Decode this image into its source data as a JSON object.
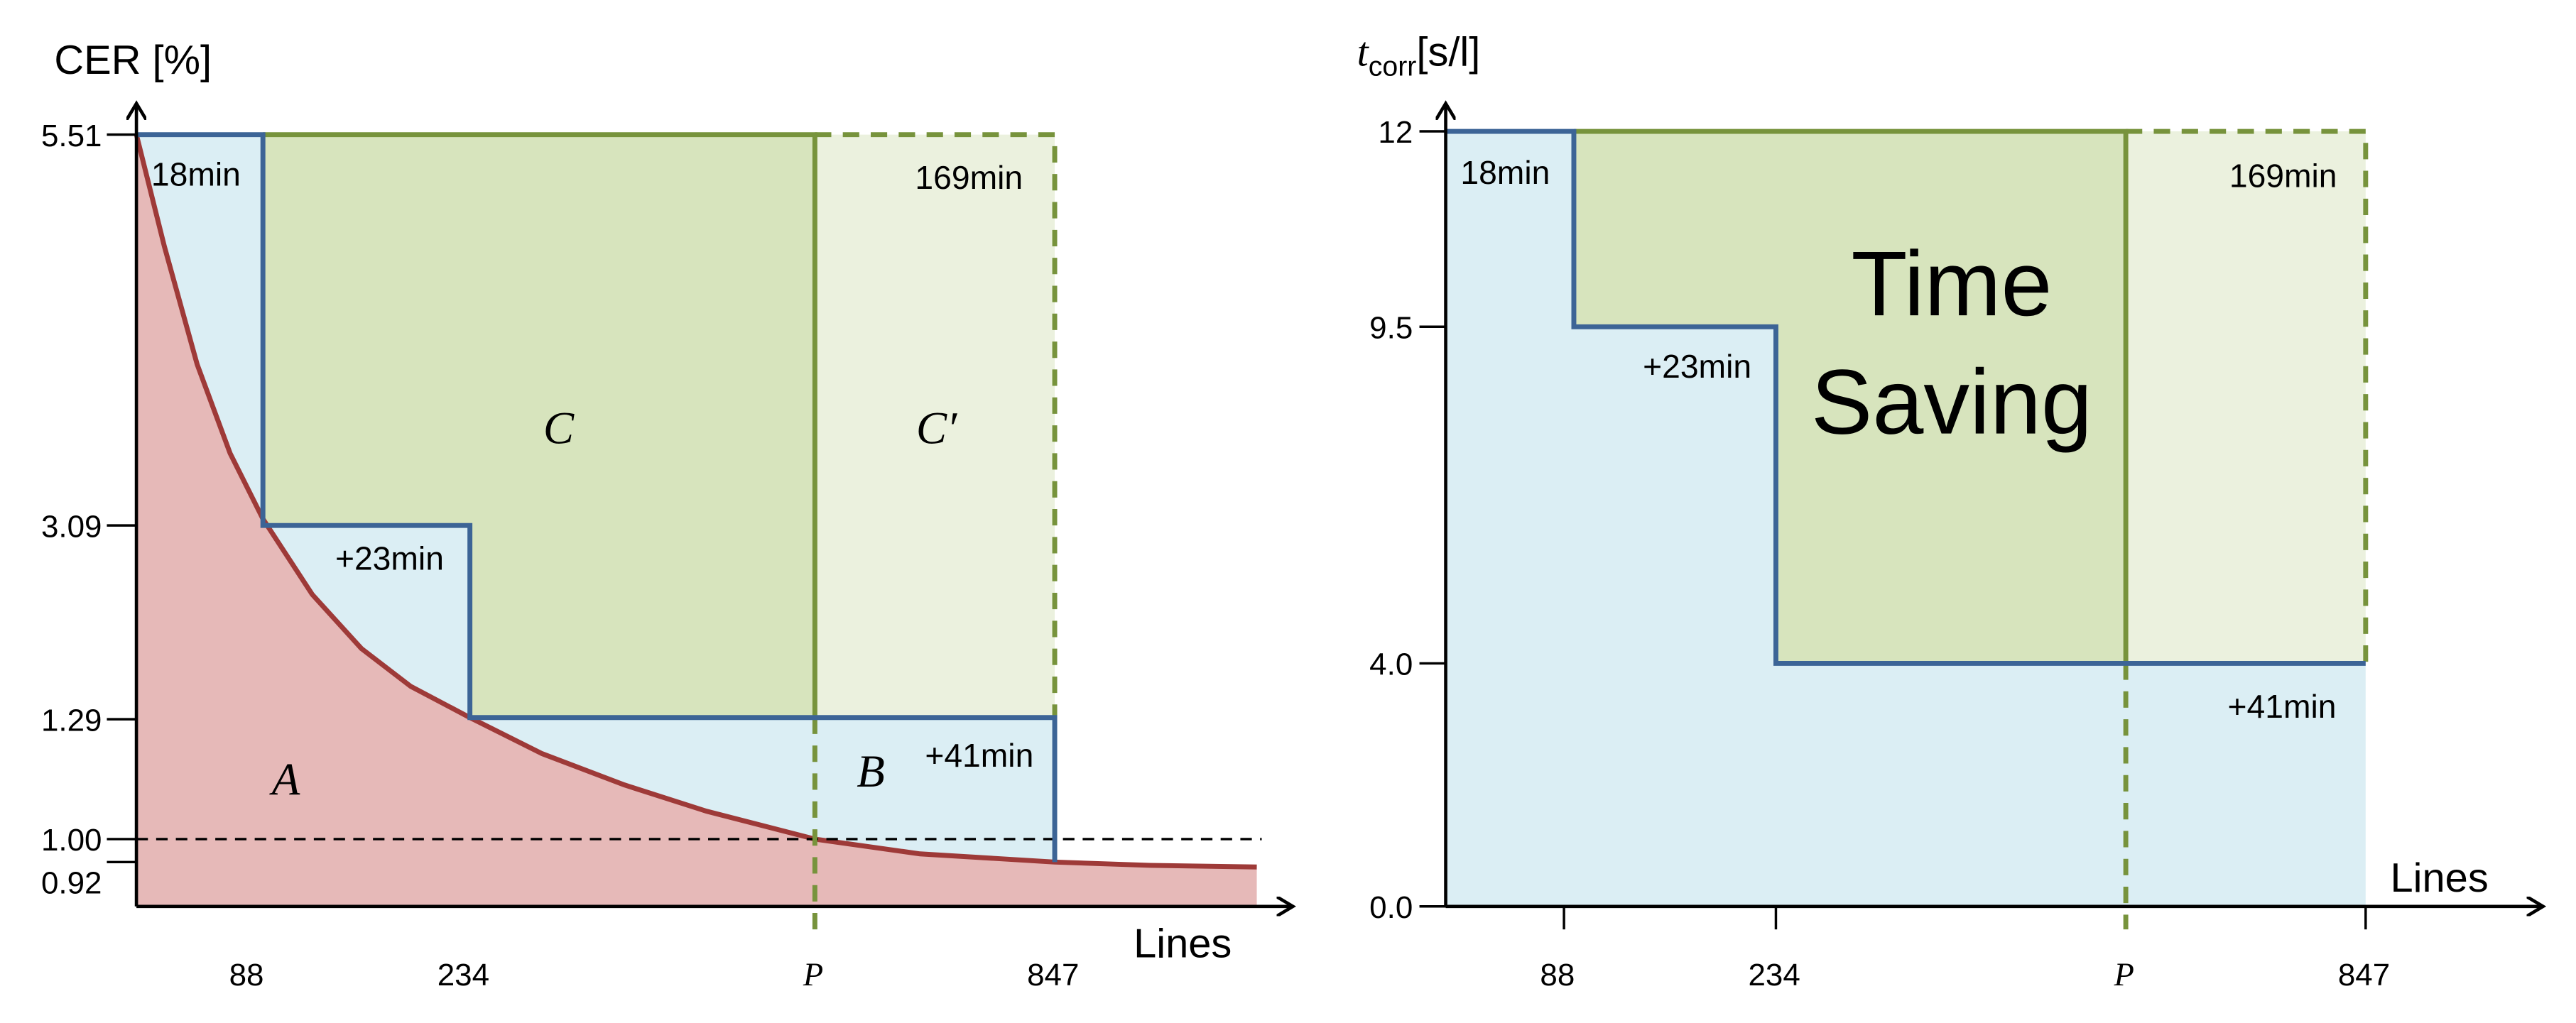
{
  "left": {
    "y_label": "CER [%]",
    "y_ticks": [
      "5.51",
      "3.09",
      "1.29",
      "1.00",
      "0.92"
    ],
    "x_ticks": [
      "88",
      "234",
      "P",
      "847"
    ],
    "x_label": "Lines",
    "regions": [
      "A",
      "B",
      "C",
      "C′"
    ],
    "annotations": [
      "18min",
      "+23min",
      "+41min",
      "169min"
    ]
  },
  "right": {
    "y_label_main": "t",
    "y_label_sub": "corr",
    "y_label_unit": "[s/l]",
    "y_ticks": [
      "12",
      "9.5",
      "4.0",
      "0.0"
    ],
    "x_ticks": [
      "88",
      "234",
      "P",
      "847"
    ],
    "x_label": "Lines",
    "center_label": [
      "Time",
      "Saving"
    ],
    "annotations": [
      "18min",
      "+23min",
      "+41min",
      "169min"
    ]
  }
}
